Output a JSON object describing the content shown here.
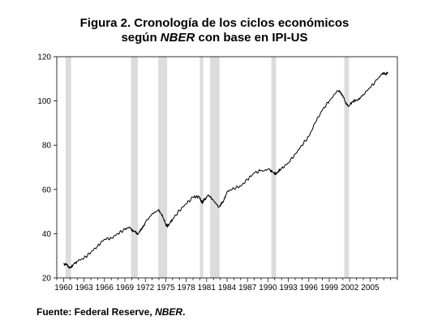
{
  "title": {
    "line1": "Figura 2. Cronología de los ciclos económicos",
    "line2_prefix": "según ",
    "line2_em": "NBER",
    "line2_suffix": " con base en IPI-US"
  },
  "source": {
    "prefix": "Fuente: Federal Reserve, ",
    "em": "NBER",
    "suffix": "."
  },
  "chart_data": {
    "type": "line",
    "title": "Figura 2. Cronología de los ciclos económicos según NBER con base en IPI-US",
    "xlabel": "",
    "ylabel": "",
    "xlim": [
      1959.0,
      2009.0
    ],
    "ylim": [
      20,
      120
    ],
    "yticks": [
      20,
      40,
      60,
      80,
      100,
      120
    ],
    "xticks": [
      "1960",
      "1963",
      "1966",
      "1969",
      "1972",
      "1975",
      "1978",
      "1981",
      "1984",
      "1987",
      "1990",
      "1993",
      "1996",
      "1999",
      "2002",
      "2005"
    ],
    "recessions": [
      [
        1960.3,
        1961.1
      ],
      [
        1969.9,
        1970.9
      ],
      [
        1973.9,
        1975.2
      ],
      [
        1980.0,
        1980.5
      ],
      [
        1981.5,
        1982.9
      ],
      [
        1990.5,
        1991.2
      ],
      [
        2001.2,
        2001.9
      ]
    ],
    "series": [
      {
        "color": "#000000",
        "points": [
          [
            1960.0,
            26.5
          ],
          [
            1960.5,
            25.8
          ],
          [
            1961.0,
            24.5
          ],
          [
            1961.4,
            26.0
          ],
          [
            1962.0,
            27.5
          ],
          [
            1963.0,
            29.0
          ],
          [
            1964.0,
            31.5
          ],
          [
            1965.0,
            34.5
          ],
          [
            1966.0,
            37.5
          ],
          [
            1967.0,
            38.0
          ],
          [
            1968.0,
            40.0
          ],
          [
            1969.0,
            42.0
          ],
          [
            1969.7,
            43.0
          ],
          [
            1970.3,
            41.0
          ],
          [
            1970.9,
            40.0
          ],
          [
            1971.5,
            42.0
          ],
          [
            1972.0,
            45.0
          ],
          [
            1973.0,
            49.0
          ],
          [
            1973.9,
            50.5
          ],
          [
            1974.5,
            48.5
          ],
          [
            1975.0,
            44.0
          ],
          [
            1975.4,
            43.5
          ],
          [
            1976.0,
            46.5
          ],
          [
            1977.0,
            50.5
          ],
          [
            1978.0,
            53.5
          ],
          [
            1979.0,
            56.5
          ],
          [
            1979.9,
            56.8
          ],
          [
            1980.3,
            54.0
          ],
          [
            1980.7,
            55.5
          ],
          [
            1981.3,
            57.5
          ],
          [
            1982.0,
            55.0
          ],
          [
            1982.8,
            52.0
          ],
          [
            1983.5,
            55.0
          ],
          [
            1984.0,
            59.0
          ],
          [
            1985.0,
            60.5
          ],
          [
            1986.0,
            61.5
          ],
          [
            1987.0,
            64.5
          ],
          [
            1988.0,
            67.5
          ],
          [
            1989.0,
            68.5
          ],
          [
            1990.3,
            69.0
          ],
          [
            1990.9,
            67.0
          ],
          [
            1991.3,
            67.5
          ],
          [
            1992.0,
            69.5
          ],
          [
            1993.0,
            72.0
          ],
          [
            1994.0,
            76.0
          ],
          [
            1995.0,
            80.0
          ],
          [
            1996.0,
            84.0
          ],
          [
            1997.0,
            90.5
          ],
          [
            1998.0,
            96.0
          ],
          [
            1999.0,
            100.0
          ],
          [
            2000.3,
            104.5
          ],
          [
            2000.8,
            103.5
          ],
          [
            2001.3,
            100.0
          ],
          [
            2001.8,
            97.5
          ],
          [
            2002.5,
            100.0
          ],
          [
            2003.3,
            100.5
          ],
          [
            2004.0,
            103.0
          ],
          [
            2005.0,
            106.0
          ],
          [
            2006.0,
            109.5
          ],
          [
            2006.8,
            112.5
          ],
          [
            2007.3,
            112.0
          ],
          [
            2007.6,
            113.0
          ]
        ]
      }
    ],
    "grid": false,
    "legend": "none"
  }
}
